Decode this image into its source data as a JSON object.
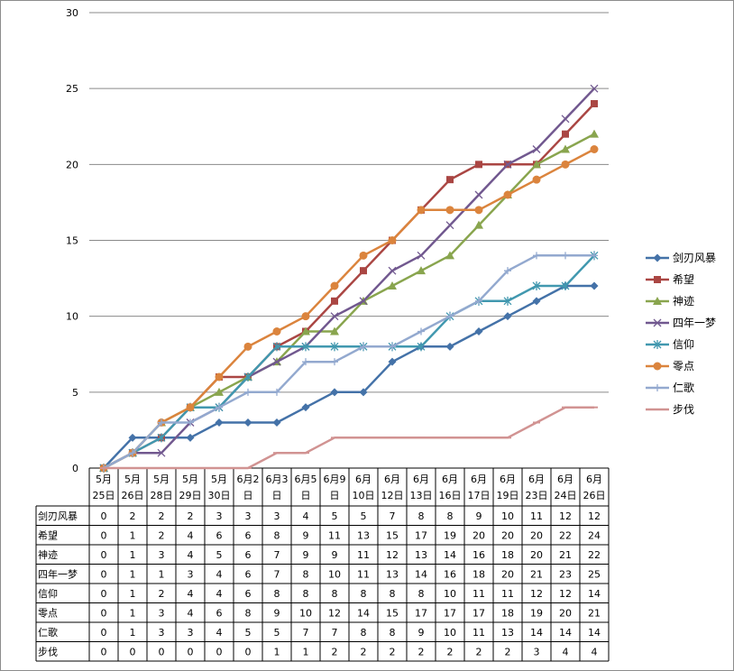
{
  "chart_data": {
    "type": "line",
    "title": "",
    "xlabel": "",
    "ylabel": "",
    "ylim": [
      0,
      30
    ],
    "yticks": [
      0,
      5,
      10,
      15,
      20,
      25,
      30
    ],
    "grid": "horizontal",
    "legend": "right",
    "data_table": true,
    "categories": [
      [
        "5月",
        "25日"
      ],
      [
        "5月",
        "26日"
      ],
      [
        "5月",
        "28日"
      ],
      [
        "5月",
        "29日"
      ],
      [
        "5月",
        "30日"
      ],
      [
        "6月2",
        "日"
      ],
      [
        "6月3",
        "日"
      ],
      [
        "6月5",
        "日"
      ],
      [
        "6月9",
        "日"
      ],
      [
        "6月",
        "10日"
      ],
      [
        "6月",
        "12日"
      ],
      [
        "6月",
        "13日"
      ],
      [
        "6月",
        "16日"
      ],
      [
        "6月",
        "17日"
      ],
      [
        "6月",
        "19日"
      ],
      [
        "6月",
        "23日"
      ],
      [
        "6月",
        "24日"
      ],
      [
        "6月",
        "26日"
      ]
    ],
    "series": [
      {
        "name": "剑刃风暴",
        "color": "#4472a8",
        "marker": "diamond",
        "values": [
          0,
          2,
          2,
          2,
          3,
          3,
          3,
          4,
          5,
          5,
          7,
          8,
          8,
          9,
          10,
          11,
          12,
          12
        ]
      },
      {
        "name": "希望",
        "color": "#aa4643",
        "marker": "square",
        "values": [
          0,
          1,
          2,
          4,
          6,
          6,
          8,
          9,
          11,
          13,
          15,
          17,
          19,
          20,
          20,
          20,
          22,
          24
        ]
      },
      {
        "name": "神迹",
        "color": "#89a54e",
        "marker": "triangle",
        "values": [
          0,
          1,
          3,
          4,
          5,
          6,
          7,
          9,
          9,
          11,
          12,
          13,
          14,
          16,
          18,
          20,
          21,
          22
        ]
      },
      {
        "name": "四年一梦",
        "color": "#71588f",
        "marker": "x",
        "values": [
          0,
          1,
          1,
          3,
          4,
          6,
          7,
          8,
          10,
          11,
          13,
          14,
          16,
          18,
          20,
          21,
          23,
          25
        ]
      },
      {
        "name": "信仰",
        "color": "#4198af",
        "marker": "star",
        "values": [
          0,
          1,
          2,
          4,
          4,
          6,
          8,
          8,
          8,
          8,
          8,
          8,
          10,
          11,
          11,
          12,
          12,
          14
        ]
      },
      {
        "name": "零点",
        "color": "#db843d",
        "marker": "circle",
        "values": [
          0,
          1,
          3,
          4,
          6,
          8,
          9,
          10,
          12,
          14,
          15,
          17,
          17,
          17,
          18,
          19,
          20,
          21
        ]
      },
      {
        "name": "仁歌",
        "color": "#93a9cf",
        "marker": "plus",
        "values": [
          0,
          1,
          3,
          3,
          4,
          5,
          5,
          7,
          7,
          8,
          8,
          9,
          10,
          11,
          13,
          14,
          14,
          14
        ]
      },
      {
        "name": "步伐",
        "color": "#d19392",
        "marker": "dash",
        "values": [
          0,
          0,
          0,
          0,
          0,
          0,
          1,
          1,
          2,
          2,
          2,
          2,
          2,
          2,
          2,
          3,
          4,
          4
        ]
      }
    ]
  }
}
